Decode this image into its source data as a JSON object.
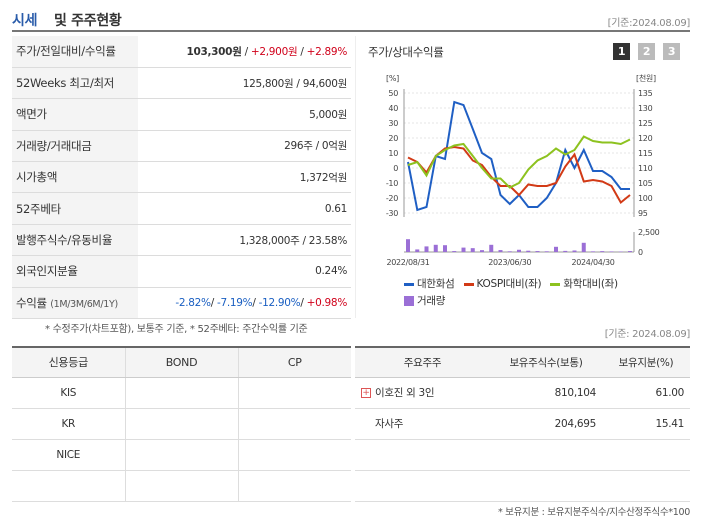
{
  "header": {
    "title_main": "시세",
    "title_rest": "및 주주현황",
    "date": "[기준:2024.08.09]"
  },
  "quote": {
    "rows": [
      {
        "label": "주가/전일대비/수익률"
      },
      {
        "label": "52Weeks 최고/최저",
        "value": "125,800원 / 94,600원"
      },
      {
        "label": "액면가",
        "value": "5,000원"
      },
      {
        "label": "거래량/거래대금",
        "value": "296주 / 0억원"
      },
      {
        "label": "시가총액",
        "value": "1,372억원"
      },
      {
        "label": "52주베타",
        "value": "0.61"
      },
      {
        "label": "발행주식수/유동비율",
        "value": "1,328,000주 / 23.58%"
      },
      {
        "label": "외국인지분율",
        "value": "0.24%"
      },
      {
        "label": "수익률",
        "sub": "(1M/3M/6M/1Y)"
      }
    ],
    "price": "103,300원",
    "change": "+2,900원",
    "change_pct": "+2.89%",
    "returns": [
      "-2.82%",
      "-7.19%",
      "-12.90%",
      "+0.98%"
    ]
  },
  "notes": {
    "quote_note": "* 수정주가(차트포함), 보통주 기준, * 52주베타: 주간수익률 기준",
    "date2": "[기준: 2024.08.09]",
    "holder_note": "* 보유지분 : 보유지분주식수/지수산정주식수*100"
  },
  "chart_data": {
    "type": "line",
    "title": "주가/상대수익률",
    "buttons": [
      "1",
      "2",
      "3"
    ],
    "x": [
      "2022/08/31",
      "",
      "",
      "",
      "",
      "",
      "",
      "",
      "",
      "",
      "",
      "2023/06/30",
      "",
      "",
      "",
      "",
      "",
      "",
      "",
      "",
      "2024/04/30",
      "",
      "",
      "",
      ""
    ],
    "xticks": [
      "2022/08/31",
      "2023/06/30",
      "2024/04/30"
    ],
    "y_left": {
      "unit": "[%]",
      "ticks": [
        50,
        40,
        30,
        20,
        10,
        0,
        -10,
        -20,
        -30
      ],
      "ylim": [
        -30,
        50
      ]
    },
    "y_right": {
      "unit": "[천원]",
      "ticks": [
        135,
        130,
        125,
        120,
        115,
        110,
        105,
        100,
        95
      ],
      "ylim": [
        95,
        135
      ]
    },
    "volume_axis": {
      "ticks": [
        "2,500",
        "0"
      ],
      "ymax": 2500
    },
    "series": [
      {
        "name": "대한화섬",
        "color": "#1f5fc4",
        "axis": "right",
        "values": [
          112,
          96,
          97,
          114,
          113,
          132,
          131,
          123,
          115,
          113,
          101,
          98,
          101,
          97,
          97,
          100,
          105,
          116,
          110,
          116,
          109,
          109,
          107,
          103,
          103
        ]
      },
      {
        "name": "KOSPI대비(좌)",
        "color": "#d23a16",
        "axis": "left",
        "values": [
          7,
          4,
          -3,
          8,
          13,
          14,
          13,
          5,
          2,
          -6,
          -12,
          -12,
          -18,
          -11,
          -12,
          -12,
          -10,
          1,
          9,
          -9,
          -8,
          -9,
          -12,
          -23,
          -18
        ]
      },
      {
        "name": "화학대비(좌)",
        "color": "#8dc21f",
        "axis": "left",
        "values": [
          2,
          4,
          -5,
          8,
          12,
          15,
          16,
          8,
          0,
          -7,
          -7,
          -13,
          -10,
          -1,
          5,
          8,
          13,
          9,
          12,
          21,
          18,
          17,
          17,
          16,
          19
        ]
      }
    ],
    "volume": {
      "name": "거래량",
      "color": "#9b6fd6",
      "values": [
        1600,
        320,
        700,
        900,
        850,
        120,
        550,
        480,
        230,
        900,
        240,
        90,
        280,
        160,
        120,
        90,
        650,
        140,
        190,
        1150,
        80,
        110,
        70,
        60,
        120
      ]
    }
  },
  "credit": {
    "headers": [
      "신용등급",
      "BOND",
      "CP"
    ],
    "rows": [
      [
        "KIS",
        "",
        ""
      ],
      [
        "KR",
        "",
        ""
      ],
      [
        "NICE",
        "",
        ""
      ],
      [
        "",
        "",
        ""
      ]
    ]
  },
  "holders": {
    "headers": [
      "주요주주",
      "보유주식수(보통)",
      "보유지분(%)"
    ],
    "rows": [
      {
        "name": "이호진 외 3인",
        "shares": "810,104",
        "pct": "61.00",
        "expand": "+"
      },
      {
        "name": "자사주",
        "shares": "204,695",
        "pct": "15.41"
      },
      {
        "name": "",
        "shares": "",
        "pct": ""
      },
      {
        "name": "",
        "shares": "",
        "pct": ""
      }
    ]
  }
}
